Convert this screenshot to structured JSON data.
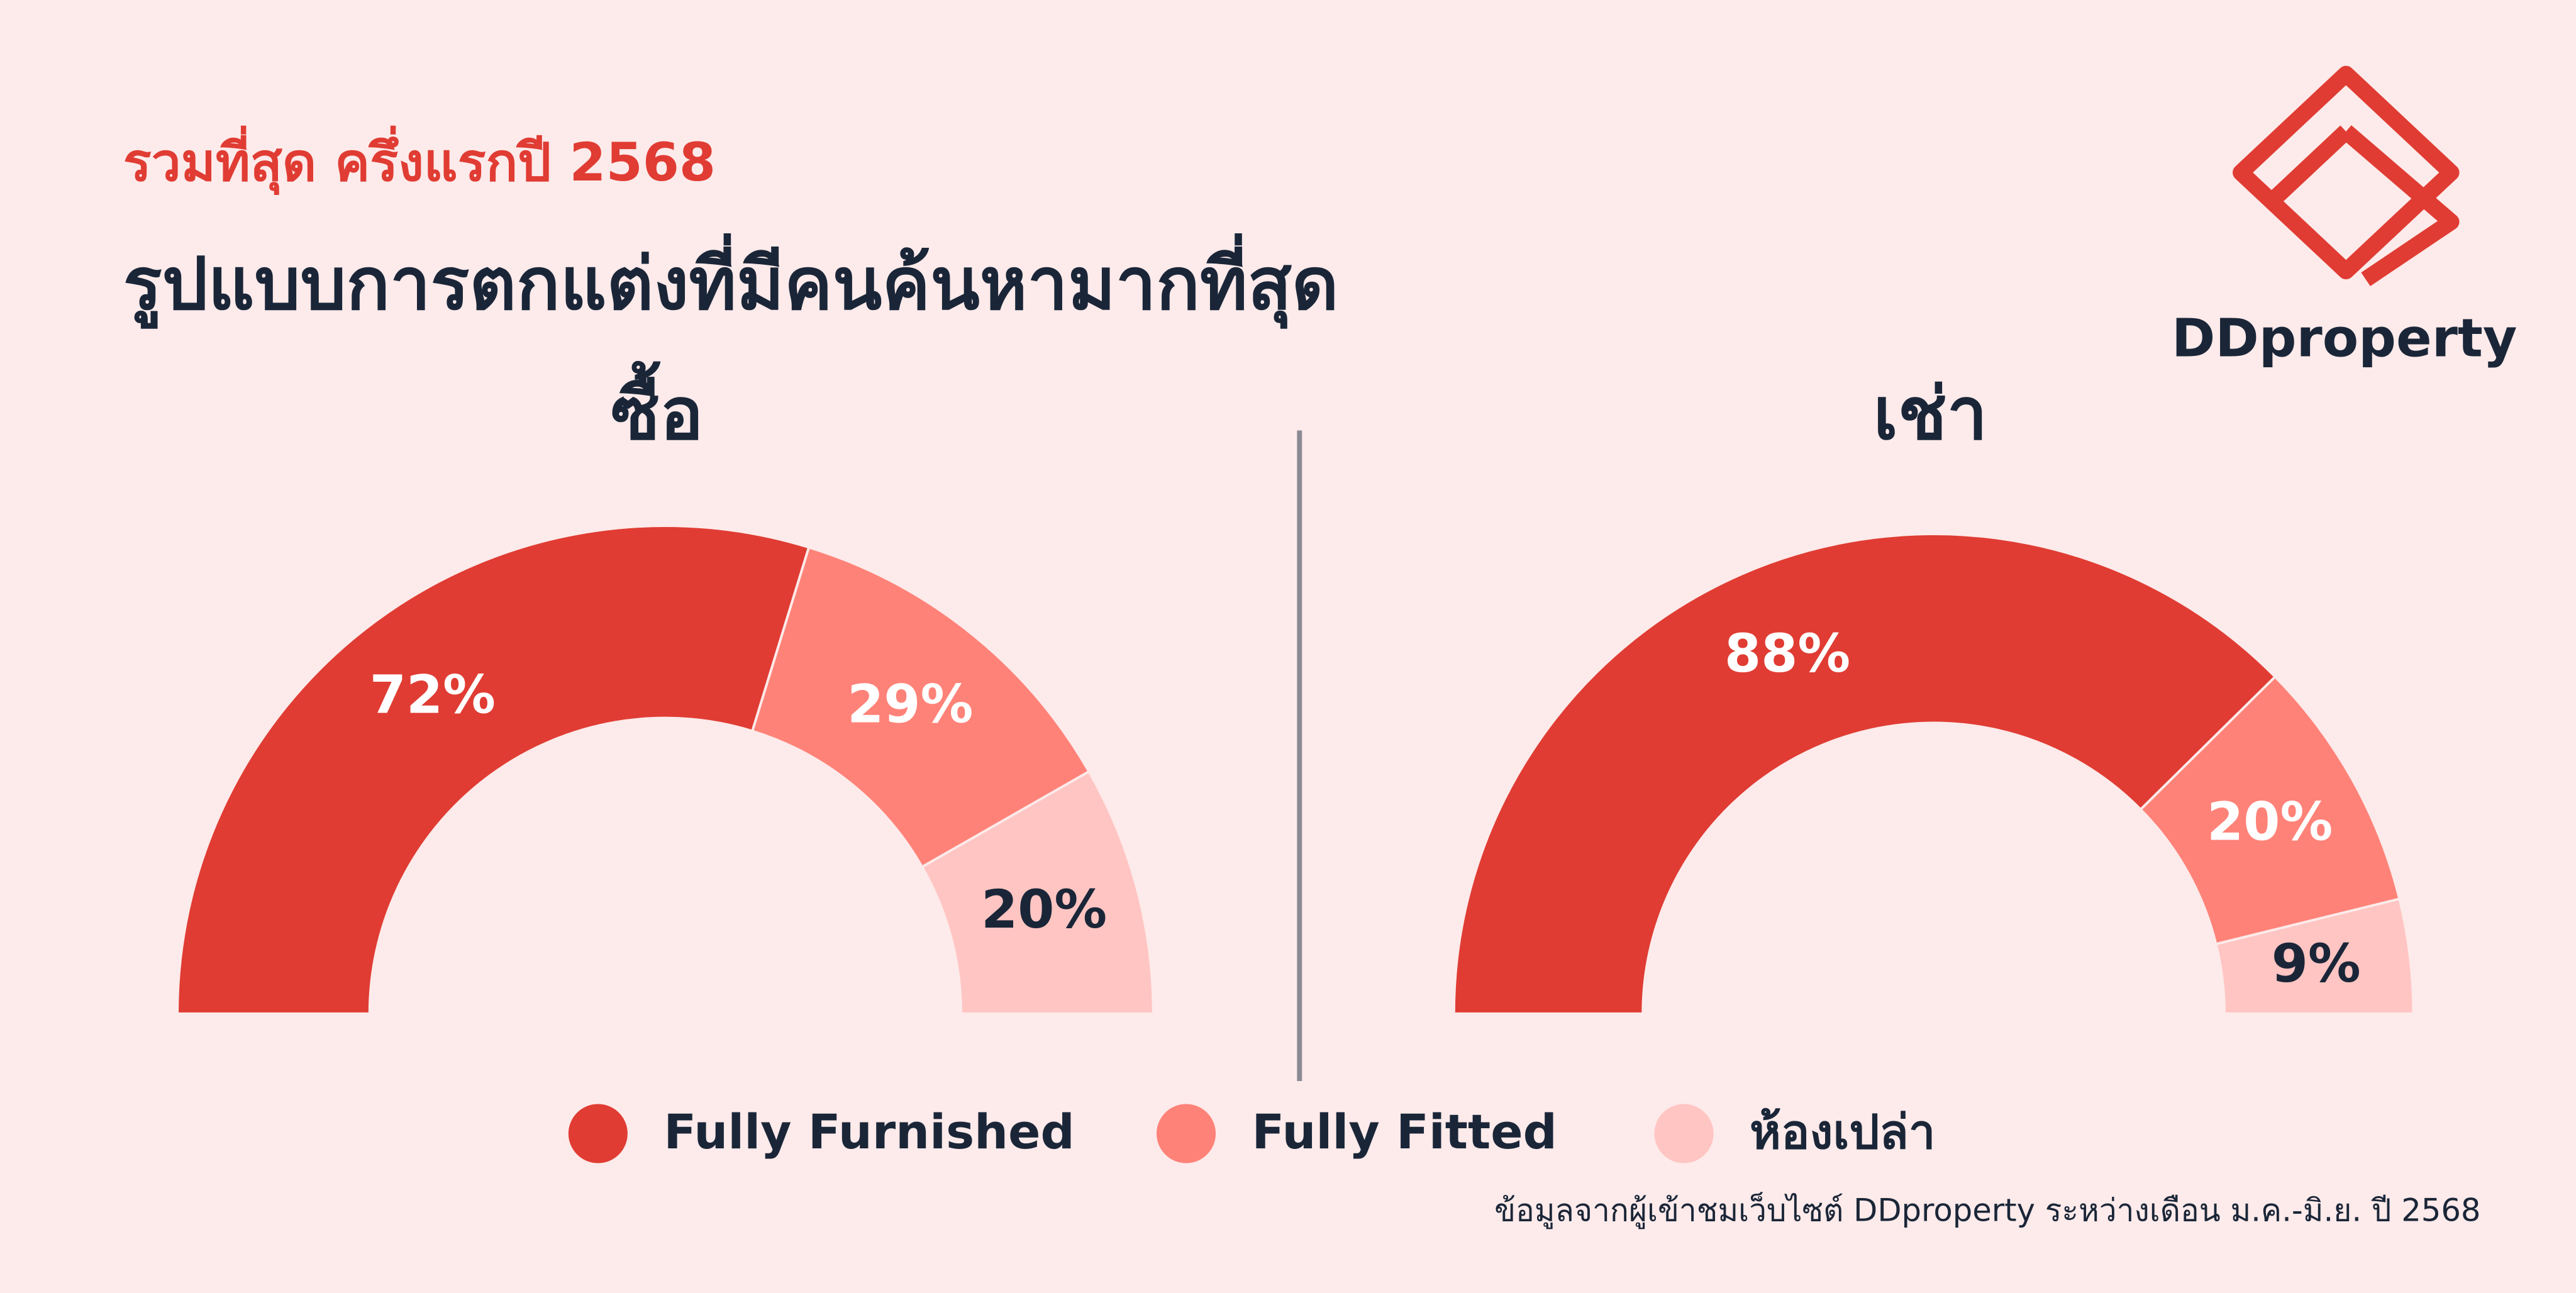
{
  "header": {
    "kicker": "รวมที่สุด ครึ่งแรกปี 2568",
    "title": "รูปแบบการตกแต่งที่มีคนค้นหามากที่สุด"
  },
  "logo": "DDproperty",
  "chart_data": [
    {
      "type": "pie",
      "title": "ซื้อ",
      "categories": [
        "Fully Furnished",
        "Fully Fitted",
        "ห้องเปล่า"
      ],
      "values": [
        72,
        29,
        20
      ],
      "value_labels": [
        "72%",
        "29%",
        "20%"
      ],
      "colors": [
        "#e03c33",
        "#ff8278",
        "#ffc5c2"
      ]
    },
    {
      "type": "pie",
      "title": "เช่า",
      "categories": [
        "Fully Furnished",
        "Fully Fitted",
        "ห้องเปล่า"
      ],
      "values": [
        88,
        20,
        9
      ],
      "value_labels": [
        "88%",
        "20%",
        "9%"
      ],
      "colors": [
        "#e03c33",
        "#ff8278",
        "#ffc5c2"
      ]
    }
  ],
  "source": "ข้อมูลจากผู้เข้าชมเว็บไซต์ DDproperty ระหว่างเดือน ม.ค.-มิ.ย. ปี 2568"
}
